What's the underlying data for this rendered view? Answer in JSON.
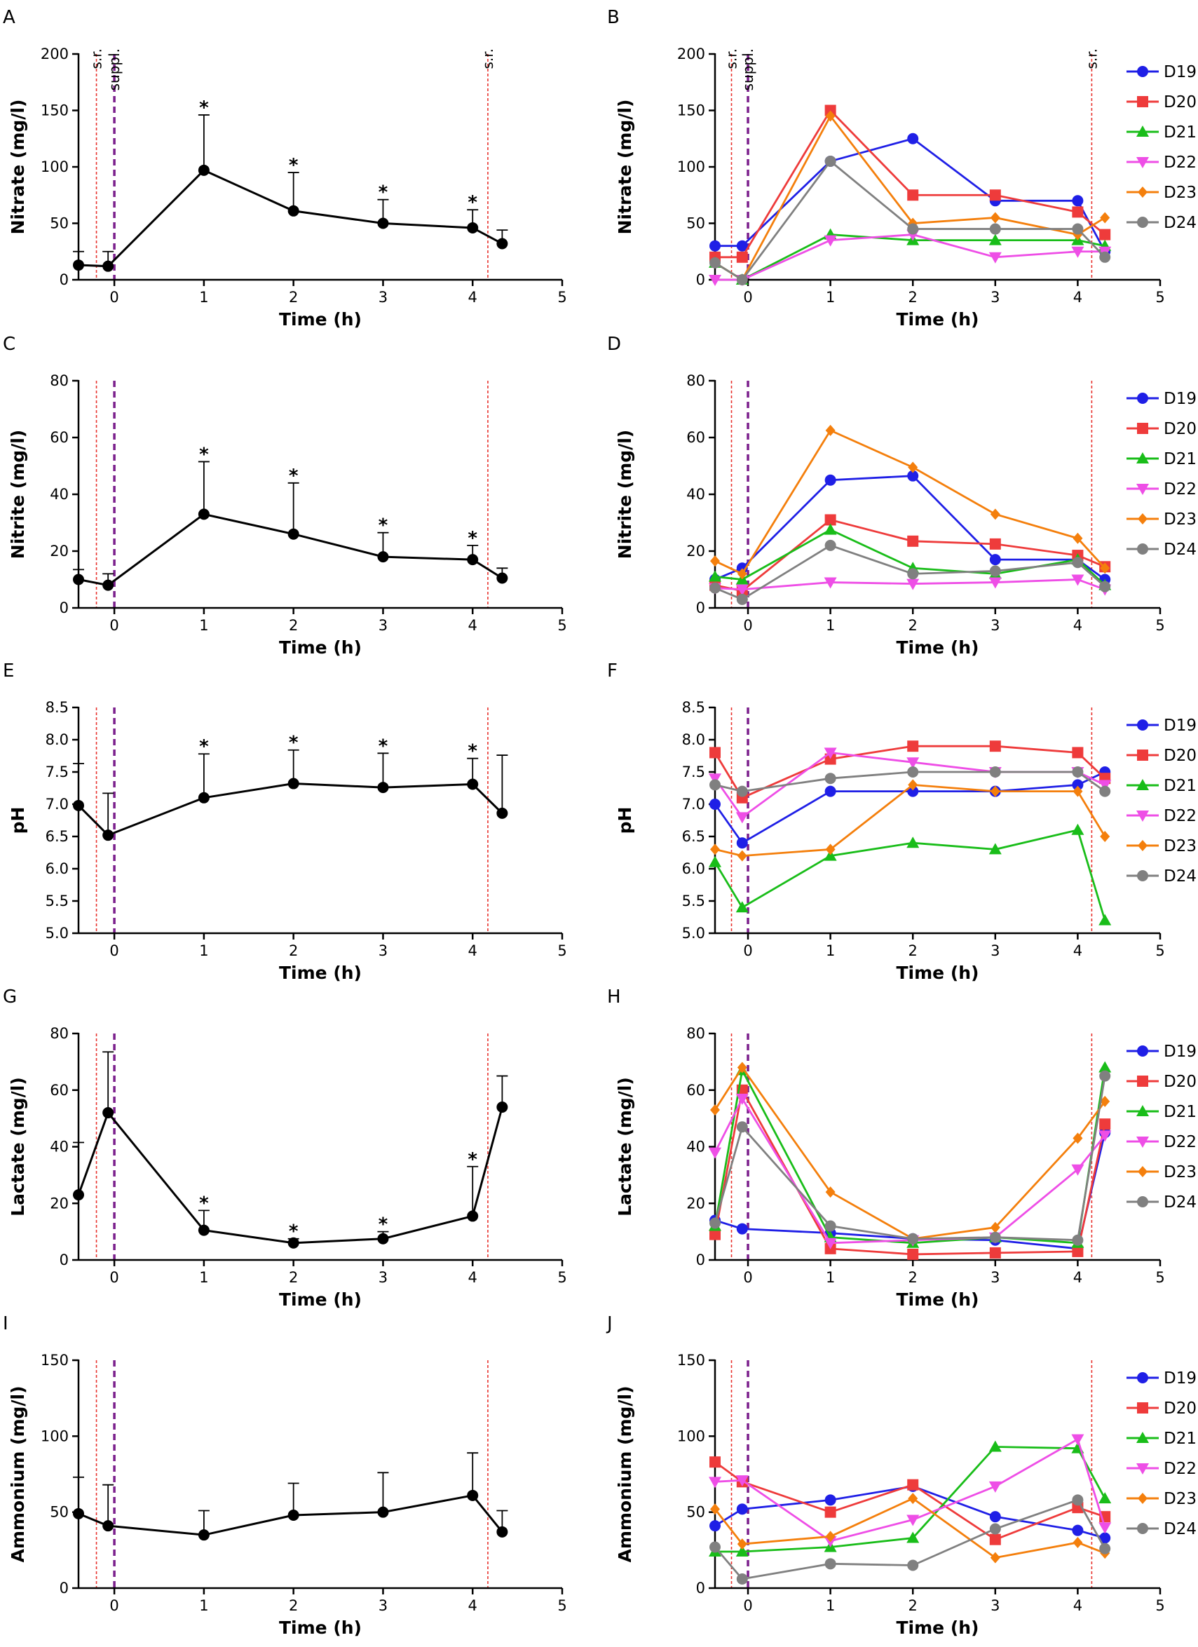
{
  "figure": {
    "rows": [
      {
        "left": "A",
        "right": "B",
        "ylabel": "Nitrate (mg/l)",
        "ylim": [
          0,
          200
        ],
        "yticks": [
          0,
          50,
          100,
          150,
          200
        ],
        "ytick_labels": [
          "0",
          "50",
          "100",
          "150",
          "200"
        ],
        "show_marker_labels": true
      },
      {
        "left": "C",
        "right": "D",
        "ylabel": "Nitrite (mg/l)",
        "ylim": [
          0,
          80
        ],
        "yticks": [
          0,
          20,
          40,
          60,
          80
        ],
        "ytick_labels": [
          "0",
          "20",
          "40",
          "60",
          "80"
        ],
        "show_marker_labels": false
      },
      {
        "left": "E",
        "right": "F",
        "ylabel": "pH",
        "ylim": [
          5.0,
          8.5
        ],
        "yticks": [
          5.0,
          5.5,
          6.0,
          6.5,
          7.0,
          7.5,
          8.0,
          8.5
        ],
        "ytick_labels": [
          "5.0",
          "5.5",
          "6.0",
          "6.5",
          "7.0",
          "7.5",
          "8.0",
          "8.5"
        ],
        "show_marker_labels": false
      },
      {
        "left": "G",
        "right": "H",
        "ylabel": "Lactate (mg/l)",
        "ylim": [
          0,
          80
        ],
        "yticks": [
          0,
          20,
          40,
          60,
          80
        ],
        "ytick_labels": [
          "0",
          "20",
          "40",
          "60",
          "80"
        ],
        "show_marker_labels": false
      },
      {
        "left": "I",
        "right": "J",
        "ylabel": "Ammonium (mg/l)",
        "ylim": [
          0,
          150
        ],
        "yticks": [
          0,
          50,
          100,
          150
        ],
        "ytick_labels": [
          "0",
          "50",
          "100",
          "150"
        ],
        "show_marker_labels": false
      }
    ],
    "xlabel": "Time (h)",
    "xlim": [
      -0.4,
      5
    ],
    "xticks": [
      0,
      1,
      2,
      3,
      4,
      5
    ],
    "xtick_labels": [
      "0",
      "1",
      "2",
      "3",
      "4",
      "5"
    ],
    "marker_lines": [
      {
        "x": -0.2,
        "label": "s.r.",
        "style": "dotted",
        "color": "#e8312d"
      },
      {
        "x": 0.0,
        "label": "suppl.",
        "style": "dashed",
        "color": "#7b1f8c"
      },
      {
        "x": 4.17,
        "label": "s.r.",
        "style": "dotted",
        "color": "#e8312d"
      }
    ],
    "significance_symbol": "*",
    "legend": [
      "D19",
      "D20",
      "D21",
      "D22",
      "D23",
      "D24"
    ],
    "donor_colors": [
      "#1f1fe6",
      "#ee3b3b",
      "#19bd19",
      "#ee4ee6",
      "#f47f0c",
      "#808080"
    ],
    "donor_markers": [
      "circle",
      "square",
      "triangle-up",
      "triangle-down",
      "diamond",
      "circle"
    ]
  },
  "chart_data": [
    {
      "panel": "A",
      "type": "line",
      "ylabel": "Nitrate (mg/l)",
      "xlabel": "Time (h)",
      "x": [
        -0.4,
        -0.07,
        1,
        2,
        3,
        4,
        4.33
      ],
      "y": [
        13,
        12,
        97,
        61,
        50,
        46,
        32
      ],
      "err": [
        12,
        13,
        49,
        34,
        21,
        16,
        12
      ],
      "significant": [
        false,
        false,
        true,
        true,
        true,
        true,
        false
      ]
    },
    {
      "panel": "B",
      "type": "line",
      "ylabel": "Nitrate (mg/l)",
      "xlabel": "Time (h)",
      "x": [
        -0.4,
        -0.07,
        1,
        2,
        3,
        4,
        4.33
      ],
      "series": [
        {
          "name": "D19",
          "values": [
            30,
            30,
            105,
            125,
            70,
            70,
            25
          ]
        },
        {
          "name": "D20",
          "values": [
            20,
            20,
            150,
            75,
            75,
            60,
            40
          ]
        },
        {
          "name": "D21",
          "values": [
            15,
            0,
            40,
            35,
            35,
            35,
            30
          ]
        },
        {
          "name": "D22",
          "values": [
            0,
            0,
            35,
            40,
            20,
            25,
            25
          ]
        },
        {
          "name": "D23",
          "values": [
            15,
            0,
            145,
            50,
            55,
            40,
            55
          ]
        },
        {
          "name": "D24",
          "values": [
            15,
            0,
            105,
            45,
            45,
            45,
            20
          ]
        }
      ]
    },
    {
      "panel": "C",
      "type": "line",
      "ylabel": "Nitrite (mg/l)",
      "xlabel": "Time (h)",
      "x": [
        -0.4,
        -0.07,
        1,
        2,
        3,
        4,
        4.33
      ],
      "y": [
        10,
        8,
        33,
        26,
        18,
        17,
        10.5
      ],
      "err": [
        3.5,
        4,
        18.5,
        18,
        8.5,
        5,
        3.5
      ],
      "significant": [
        false,
        false,
        true,
        true,
        true,
        true,
        false
      ]
    },
    {
      "panel": "D",
      "type": "line",
      "ylabel": "Nitrite (mg/l)",
      "xlabel": "Time (h)",
      "x": [
        -0.4,
        -0.07,
        1,
        2,
        3,
        4,
        4.33
      ],
      "series": [
        {
          "name": "D19",
          "values": [
            10,
            14,
            45,
            46.5,
            17,
            17,
            10
          ]
        },
        {
          "name": "D20",
          "values": [
            8,
            6,
            31,
            23.5,
            22.5,
            18.5,
            14.5
          ]
        },
        {
          "name": "D21",
          "values": [
            11,
            10,
            27.5,
            14,
            12,
            17,
            8
          ]
        },
        {
          "name": "D22",
          "values": [
            7,
            6.5,
            9,
            8.5,
            9,
            10,
            6.5
          ]
        },
        {
          "name": "D23",
          "values": [
            16.5,
            12,
            62.5,
            49.5,
            33,
            24.5,
            14
          ]
        },
        {
          "name": "D24",
          "values": [
            7,
            3,
            22,
            12,
            13,
            16,
            7.5
          ]
        }
      ]
    },
    {
      "panel": "E",
      "type": "line",
      "ylabel": "pH",
      "xlabel": "Time (h)",
      "x": [
        -0.4,
        -0.07,
        1,
        2,
        3,
        4,
        4.33
      ],
      "y": [
        6.98,
        6.52,
        7.1,
        7.32,
        7.26,
        7.31,
        6.86
      ],
      "err": [
        0.65,
        0.65,
        0.68,
        0.52,
        0.53,
        0.4,
        0.9
      ],
      "significant": [
        false,
        false,
        true,
        true,
        true,
        true,
        false
      ]
    },
    {
      "panel": "F",
      "type": "line",
      "ylabel": "pH",
      "xlabel": "Time (h)",
      "x": [
        -0.4,
        -0.07,
        1,
        2,
        3,
        4,
        4.33
      ],
      "series": [
        {
          "name": "D19",
          "values": [
            7.0,
            6.4,
            7.2,
            7.2,
            7.2,
            7.3,
            7.5
          ]
        },
        {
          "name": "D20",
          "values": [
            7.8,
            7.1,
            7.7,
            7.9,
            7.9,
            7.8,
            7.4
          ]
        },
        {
          "name": "D21",
          "values": [
            6.1,
            5.4,
            6.2,
            6.4,
            6.3,
            6.6,
            5.2
          ]
        },
        {
          "name": "D22",
          "values": [
            7.4,
            6.8,
            7.8,
            7.65,
            7.5,
            7.5,
            7.3
          ]
        },
        {
          "name": "D23",
          "values": [
            6.3,
            6.2,
            6.3,
            7.3,
            7.2,
            7.2,
            6.5
          ]
        },
        {
          "name": "D24",
          "values": [
            7.3,
            7.2,
            7.4,
            7.5,
            7.5,
            7.5,
            7.2
          ]
        }
      ]
    },
    {
      "panel": "G",
      "type": "line",
      "ylabel": "Lactate (mg/l)",
      "xlabel": "Time (h)",
      "x": [
        -0.4,
        -0.07,
        1,
        2,
        3,
        4,
        4.33
      ],
      "y": [
        23,
        52,
        10.5,
        6,
        7.5,
        15.5,
        54
      ],
      "err": [
        18.5,
        21.5,
        7,
        1.5,
        2.5,
        17.5,
        11
      ],
      "significant": [
        false,
        false,
        true,
        true,
        true,
        true,
        false
      ]
    },
    {
      "panel": "H",
      "type": "line",
      "ylabel": "Lactate (mg/l)",
      "xlabel": "Time (h)",
      "x": [
        -0.4,
        -0.07,
        1,
        2,
        3,
        4,
        4.33
      ],
      "series": [
        {
          "name": "D19",
          "values": [
            14,
            11,
            9.5,
            7.5,
            7,
            4,
            45
          ]
        },
        {
          "name": "D20",
          "values": [
            9,
            60,
            4,
            2,
            2.5,
            3,
            48
          ]
        },
        {
          "name": "D21",
          "values": [
            12,
            67,
            8,
            6,
            8,
            6,
            68
          ]
        },
        {
          "name": "D22",
          "values": [
            38,
            57,
            6,
            7,
            8,
            32,
            44
          ]
        },
        {
          "name": "D23",
          "values": [
            53,
            68,
            24,
            7.5,
            11.5,
            43,
            56
          ]
        },
        {
          "name": "D24",
          "values": [
            13,
            47,
            12,
            7.5,
            8,
            7,
            65
          ]
        }
      ]
    },
    {
      "panel": "I",
      "type": "line",
      "ylabel": "Ammonium (mg/l)",
      "xlabel": "Time (h)",
      "x": [
        -0.4,
        -0.07,
        1,
        2,
        3,
        4,
        4.33
      ],
      "y": [
        49,
        41,
        35,
        48,
        50,
        61,
        37
      ],
      "err": [
        24,
        27,
        16,
        21,
        26,
        28,
        14
      ],
      "significant": [
        false,
        false,
        false,
        false,
        false,
        false,
        false
      ]
    },
    {
      "panel": "J",
      "type": "line",
      "ylabel": "Ammonium (mg/l)",
      "xlabel": "Time (h)",
      "x": [
        -0.4,
        -0.07,
        1,
        2,
        3,
        4,
        4.33
      ],
      "series": [
        {
          "name": "D19",
          "values": [
            41,
            52,
            58,
            67,
            47,
            38,
            33
          ]
        },
        {
          "name": "D20",
          "values": [
            83,
            70,
            50,
            68,
            32,
            53,
            47
          ]
        },
        {
          "name": "D21",
          "values": [
            24,
            24,
            27,
            33,
            93,
            92,
            59
          ]
        },
        {
          "name": "D22",
          "values": [
            70,
            71,
            31,
            45,
            67,
            98,
            40
          ]
        },
        {
          "name": "D23",
          "values": [
            52,
            29,
            34,
            59,
            20,
            30,
            23
          ]
        },
        {
          "name": "D24",
          "values": [
            27,
            6,
            16,
            15,
            39,
            58,
            26
          ]
        }
      ]
    }
  ]
}
